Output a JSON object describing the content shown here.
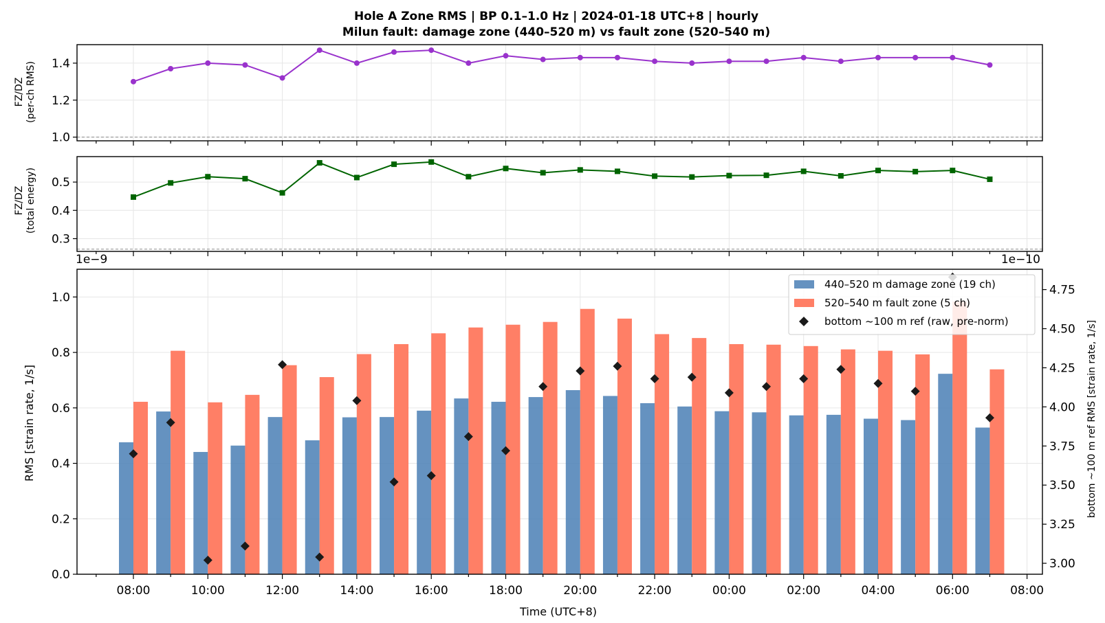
{
  "chart_data": {
    "title_line1": "Hole A Zone RMS  |  BP 0.1–1.0 Hz  |  2024-01-18 UTC+8  |  hourly",
    "title_line2": "Milun fault: damage zone (440–520 m) vs fault zone (520–540 m)",
    "xlabel": "Time (UTC+8)",
    "hours": [
      "08:00",
      "09:00",
      "10:00",
      "11:00",
      "12:00",
      "13:00",
      "14:00",
      "15:00",
      "16:00",
      "17:00",
      "18:00",
      "19:00",
      "20:00",
      "21:00",
      "22:00",
      "23:00",
      "00:00",
      "01:00",
      "02:00",
      "03:00",
      "04:00",
      "05:00",
      "06:00",
      "07:00"
    ],
    "x_tick_labels": [
      "08:00",
      "10:00",
      "12:00",
      "14:00",
      "16:00",
      "18:00",
      "20:00",
      "22:00",
      "00:00",
      "02:00",
      "04:00",
      "06:00",
      "08:00"
    ],
    "panels": [
      {
        "type": "line",
        "ylabel_line1": "FZ/DZ",
        "ylabel_line2": "(per-ch RMS)",
        "ylim": [
          0.98,
          1.5
        ],
        "yticks": [
          "1.0",
          "1.2",
          "1.4"
        ],
        "ytick_values": [
          1.0,
          1.2,
          1.4
        ],
        "reference_line": 1.0,
        "color": "#9932CC",
        "marker": "circle",
        "values": [
          1.3,
          1.37,
          1.4,
          1.39,
          1.32,
          1.47,
          1.4,
          1.46,
          1.47,
          1.4,
          1.44,
          1.42,
          1.43,
          1.43,
          1.41,
          1.4,
          1.41,
          1.41,
          1.43,
          1.41,
          1.43,
          1.43,
          1.43,
          1.39
        ]
      },
      {
        "type": "line",
        "ylabel_line1": "FZ/DZ",
        "ylabel_line2": "(total energy)",
        "ylim": [
          0.255,
          0.59
        ],
        "yticks": [
          "0.3",
          "0.4",
          "0.5"
        ],
        "ytick_values": [
          0.3,
          0.4,
          0.5
        ],
        "reference_line": 0.263,
        "color": "#006400",
        "marker": "square",
        "values": [
          0.447,
          0.497,
          0.519,
          0.512,
          0.462,
          0.568,
          0.516,
          0.563,
          0.571,
          0.519,
          0.548,
          0.533,
          0.543,
          0.538,
          0.521,
          0.518,
          0.523,
          0.524,
          0.538,
          0.522,
          0.541,
          0.537,
          0.541,
          0.51
        ]
      },
      {
        "type": "bar",
        "ylabel": "RMS  [strain rate, 1/s]",
        "ylabel_right": "bottom ~100 m ref RMS  [strain rate, 1/s]",
        "offset_left": "1e−9",
        "offset_right": "1e−10",
        "ylim": [
          0,
          1.1
        ],
        "yticks": [
          "0.0",
          "0.2",
          "0.4",
          "0.6",
          "0.8",
          "1.0"
        ],
        "ytick_values": [
          0.0,
          0.2,
          0.4,
          0.6,
          0.8,
          1.0
        ],
        "ylim_right": [
          2.93,
          4.88
        ],
        "yticks_right": [
          "3.00",
          "3.25",
          "3.50",
          "3.75",
          "4.00",
          "4.25",
          "4.50",
          "4.75"
        ],
        "ytick_values_right": [
          3.0,
          3.25,
          3.5,
          3.75,
          4.0,
          4.25,
          4.5,
          4.75
        ],
        "legend_position": "upper right",
        "series": [
          {
            "name": "440–520 m  damage zone (19 ch)",
            "color": "#4A7FB5",
            "values": [
              0.476,
              0.587,
              0.441,
              0.464,
              0.567,
              0.483,
              0.566,
              0.567,
              0.59,
              0.634,
              0.622,
              0.639,
              0.664,
              0.643,
              0.617,
              0.605,
              0.588,
              0.584,
              0.573,
              0.575,
              0.561,
              0.556,
              0.723,
              0.529
            ]
          },
          {
            "name": "520–540 m  fault zone (5 ch)",
            "color": "#FF7F66",
            "values": [
              0.622,
              0.806,
              0.62,
              0.647,
              0.754,
              0.711,
              0.794,
              0.83,
              0.869,
              0.89,
              0.9,
              0.91,
              0.957,
              0.922,
              0.866,
              0.852,
              0.83,
              0.828,
              0.823,
              0.811,
              0.806,
              0.793,
              0.983,
              0.739
            ]
          },
          {
            "name": "bottom ~100 m ref (raw, pre-norm)",
            "color": "#1a1a1a",
            "marker": "diamond",
            "axis": "right",
            "values": [
              3.7,
              3.9,
              3.02,
              3.11,
              4.27,
              3.04,
              4.04,
              3.52,
              3.56,
              3.81,
              3.72,
              4.13,
              4.23,
              4.26,
              4.18,
              4.19,
              4.09,
              4.13,
              4.18,
              4.24,
              4.15,
              4.1,
              4.83,
              3.93
            ]
          }
        ]
      }
    ]
  }
}
